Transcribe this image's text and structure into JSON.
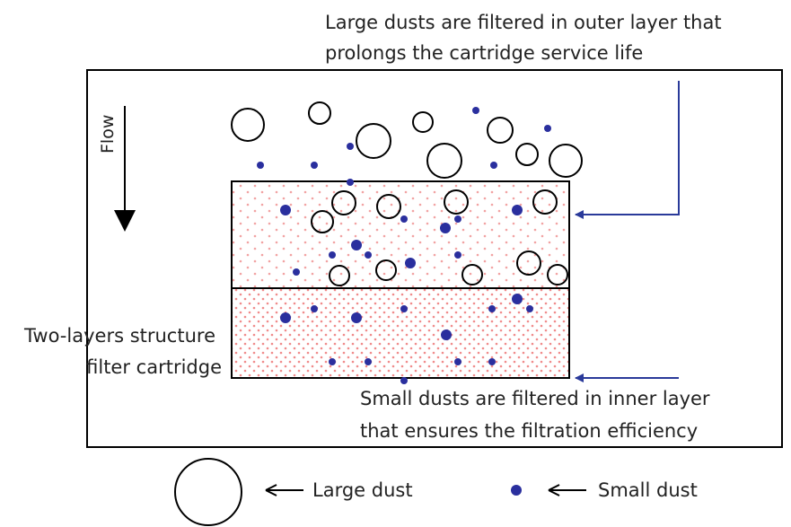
{
  "annotations": {
    "outer_layer_line1": "Large dusts are filtered in outer layer that",
    "outer_layer_line2": "prolongs the cartridge service life",
    "inner_layer_line1": "Small dusts are filtered in inner layer",
    "inner_layer_line2": "that ensures the filtration efficiency",
    "structure_line1": "Two-layers structure",
    "structure_line2": "filter cartridge",
    "flow": "Flow"
  },
  "legend": {
    "large_dust": "Large dust",
    "small_dust": "Small dust"
  },
  "colors": {
    "line": "#000000",
    "arrow_line": "#2a3a9a",
    "small_dust": "#2a2f9e",
    "outer_dots": "#f2a3a3",
    "inner_dots": "#f08b8b",
    "text": "#222222"
  }
}
